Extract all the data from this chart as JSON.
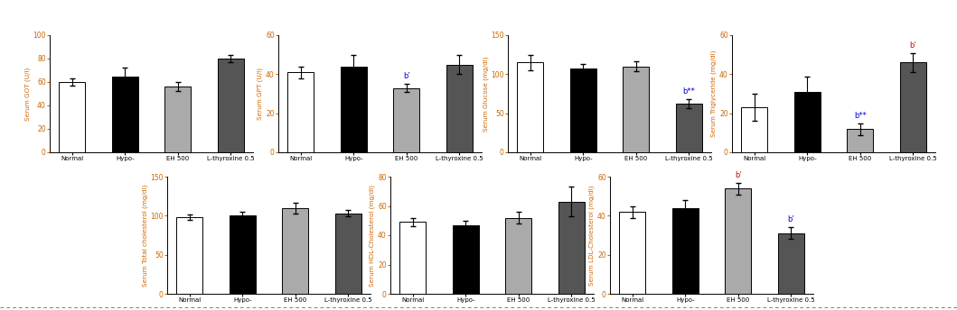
{
  "subplots": [
    {
      "ylabel": "Serum GOT (U/l)",
      "ylim": [
        0,
        100
      ],
      "yticks": [
        0,
        20,
        40,
        60,
        80,
        100
      ],
      "values": [
        60,
        65,
        56,
        80
      ],
      "errors": [
        3,
        7,
        4,
        3
      ],
      "annotations": []
    },
    {
      "ylabel": "Serum GPT (U/l)",
      "ylim": [
        0,
        60
      ],
      "yticks": [
        0,
        20,
        40,
        60
      ],
      "values": [
        41,
        44,
        33,
        45
      ],
      "errors": [
        3,
        6,
        2,
        5
      ],
      "annotations": [
        {
          "bar": 2,
          "text": "b’",
          "color": "#0000cc"
        }
      ]
    },
    {
      "ylabel": "Serum Glucose (mg/dl)",
      "ylim": [
        0,
        150
      ],
      "yticks": [
        0,
        50,
        100,
        150
      ],
      "values": [
        115,
        107,
        110,
        62
      ],
      "errors": [
        10,
        6,
        6,
        6
      ],
      "annotations": [
        {
          "bar": 3,
          "text": "b**",
          "color": "#0000cc"
        }
      ]
    },
    {
      "ylabel": "Serum Triglyceride (mg/dl)",
      "ylim": [
        0,
        60
      ],
      "yticks": [
        0,
        20,
        40,
        60
      ],
      "values": [
        23,
        31,
        12,
        46
      ],
      "errors": [
        7,
        8,
        3,
        5
      ],
      "annotations": [
        {
          "bar": 2,
          "text": "b**",
          "color": "#0000cc"
        },
        {
          "bar": 3,
          "text": "b’",
          "color": "#cc0000"
        }
      ]
    },
    {
      "ylabel": "Serum Total cholesterol (mg/dl)",
      "ylim": [
        0,
        150
      ],
      "yticks": [
        0,
        50,
        100,
        150
      ],
      "values": [
        98,
        100,
        110,
        103
      ],
      "errors": [
        3,
        5,
        7,
        4
      ],
      "annotations": []
    },
    {
      "ylabel": "Serum HDL-Cholesterol (mg/dl)",
      "ylim": [
        0,
        80
      ],
      "yticks": [
        0,
        20,
        40,
        60,
        80
      ],
      "values": [
        49,
        47,
        52,
        63
      ],
      "errors": [
        3,
        3,
        4,
        10
      ],
      "annotations": []
    },
    {
      "ylabel": "Serum LDL-Cholesterol (mg/dl)",
      "ylim": [
        0,
        60
      ],
      "yticks": [
        0,
        20,
        40,
        60
      ],
      "values": [
        42,
        44,
        54,
        31
      ],
      "errors": [
        3,
        4,
        3,
        3
      ],
      "annotations": [
        {
          "bar": 2,
          "text": "b’",
          "color": "#cc0000"
        },
        {
          "bar": 3,
          "text": "b’",
          "color": "#0000cc"
        }
      ]
    }
  ],
  "bar_colors": [
    "white",
    "black",
    "#aaaaaa",
    "#555555"
  ],
  "bar_edgecolor": "black",
  "categories": [
    "Normal",
    "Hypo-",
    "EH 500",
    "L-thyroxine 0.5"
  ],
  "ylabel_color": "#cc6600",
  "tick_color": "#cc6600",
  "figsize": [
    10.59,
    3.44
  ],
  "dpi": 100
}
